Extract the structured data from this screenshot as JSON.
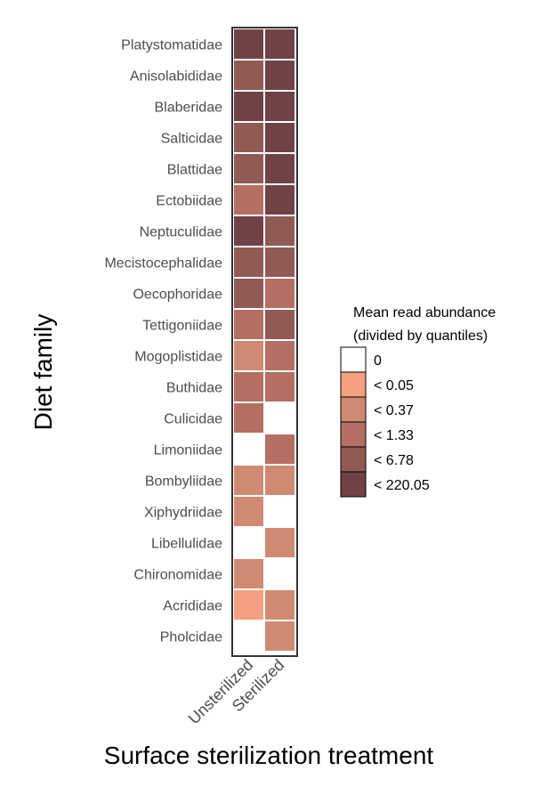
{
  "chart_data": {
    "type": "heatmap",
    "xlabel": "Surface sterilization treatment",
    "ylabel": "Diet family",
    "x_categories": [
      "Unsterilized",
      "Sterilized"
    ],
    "y_categories": [
      "Platystomatidae",
      "Anisolabididae",
      "Blaberidae",
      "Salticidae",
      "Blattidae",
      "Ectobiidae",
      "Neptuculidae",
      "Mecistocephalidae",
      "Oecophoridae",
      "Tettigoniidae",
      "Mogoplistidae",
      "Buthidae",
      "Culicidae",
      "Limoniidae",
      "Bombyliidae",
      "Xiphydriidae",
      "Libellulidae",
      "Chironomidae",
      "Acrididae",
      "Pholcidae"
    ],
    "values": [
      [
        5,
        5
      ],
      [
        4,
        5
      ],
      [
        5,
        5
      ],
      [
        4,
        5
      ],
      [
        4,
        5
      ],
      [
        3,
        5
      ],
      [
        5,
        4
      ],
      [
        4,
        4
      ],
      [
        4,
        3
      ],
      [
        3,
        4
      ],
      [
        2,
        3
      ],
      [
        3,
        3
      ],
      [
        3,
        0
      ],
      [
        0,
        3
      ],
      [
        2,
        2
      ],
      [
        2,
        0
      ],
      [
        0,
        2
      ],
      [
        2,
        0
      ],
      [
        1,
        2
      ],
      [
        0,
        2
      ]
    ],
    "value_encoding": "legend bin index (0 = first legend entry)",
    "legend": {
      "title_lines": [
        "Mean read abundance",
        "(divided by quantiles)"
      ],
      "position": "right",
      "entries": [
        {
          "label": "0",
          "color": "#ffffff"
        },
        {
          "label": "< 0.05",
          "color": "#f2a07f"
        },
        {
          "label": "< 0.37",
          "color": "#d18a72"
        },
        {
          "label": "< 1.33",
          "color": "#b46e62"
        },
        {
          "label": "< 6.78",
          "color": "#925a55"
        },
        {
          "label": "< 220.05",
          "color": "#704246"
        }
      ]
    },
    "grid": false
  }
}
